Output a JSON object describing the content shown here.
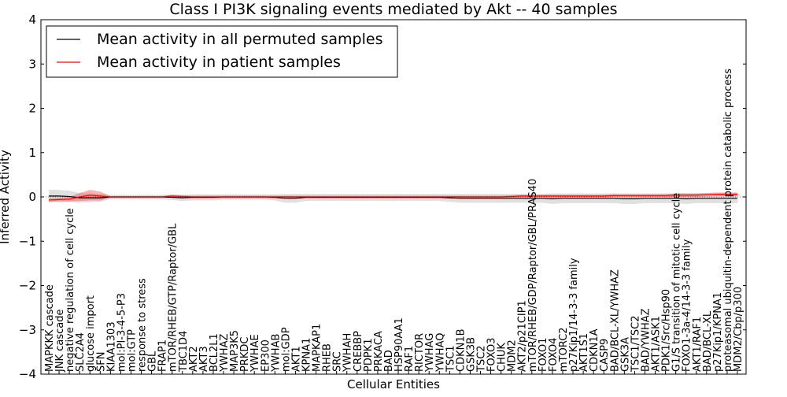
{
  "chart_data": {
    "type": "line",
    "title": "Class I PI3K signaling events mediated by Akt -- 40 samples",
    "xlabel": "Cellular Entities",
    "ylabel": "Inferred Activity",
    "ylim": [
      -4,
      4
    ],
    "yticks": [
      -4,
      -3,
      -2,
      -1,
      0,
      1,
      2,
      3,
      4
    ],
    "ytick_labels": [
      "−4",
      "−3",
      "−2",
      "−1",
      "0",
      "1",
      "2",
      "3",
      "4"
    ],
    "legend": {
      "placement": "top-left",
      "entries": [
        {
          "label": "Mean activity in all permuted samples",
          "color": "#000000"
        },
        {
          "label": "Mean activity in patient samples",
          "color": "#ff0000"
        }
      ]
    },
    "categories": [
      "MAPKKK cascade",
      "JNK cascade",
      "negative regulation of cell cycle",
      "SLC2A4",
      "glucose import",
      "SFN",
      "KIAA1303",
      "mol:PI-3-4-5-P3",
      "mol:GTP",
      "response to stress",
      "GBL",
      "FRAP1",
      "mTOR/RHEB/GTP/Raptor/GBL",
      "TBC1D4",
      "AKT2",
      "AKT3",
      "BCL2L1",
      "YWHAZ",
      "MAP3K5",
      "PRKDC",
      "YWHAE",
      "EP300",
      "YWHAB",
      "mol:GDP",
      "AKT1",
      "KPNA1",
      "MAPKAP1",
      "RHEB",
      "SRC",
      "YWHAH",
      "CREBBP",
      "PDPK1",
      "PRKACA",
      "BAD",
      "HSP90AA1",
      "RAF1",
      "RICTOR",
      "YWHAG",
      "YWHAQ",
      "TSC1",
      "CDKN1B",
      "GSK3B",
      "TSC2",
      "FOXO3",
      "CHUK",
      "MDM2",
      "AKT2/p21CIP1",
      "mTOR/RHEB/GDP/Raptor/GBL/PRAS40",
      "FOXO1",
      "FOXO4",
      "mTORC2",
      "p27Kip1/14-3-3 family",
      "AKT1S1",
      "CDKN1A",
      "CASP9",
      "BAD/BCL-XL/YWHAZ",
      "GSK3A",
      "TSC1/TSC2",
      "BAD/YWHAZ",
      "AKT1/ASK1",
      "PDK1/Src/Hsp90",
      "G1/S transition of mitotic cell cycle",
      "FOXO1-3a-4/14-3-3 family",
      "AKT1/RAF1",
      "BAD/BCL-XL",
      "p27Kip1/KPNA1",
      "proteasomal ubiquitin-dependent protein catabolic process",
      "MDM2/Cbp/p300"
    ],
    "series": [
      {
        "name": "Mean activity in all permuted samples",
        "color": "#000000",
        "values": [
          0.02,
          0.02,
          0.01,
          -0.02,
          -0.02,
          -0.02,
          0.0,
          0.0,
          0.0,
          0.0,
          0.0,
          0.0,
          -0.01,
          -0.02,
          -0.01,
          -0.01,
          -0.01,
          0.0,
          0.0,
          0.0,
          0.0,
          0.0,
          -0.01,
          -0.03,
          -0.03,
          -0.01,
          -0.01,
          -0.01,
          -0.01,
          -0.01,
          -0.01,
          -0.01,
          -0.01,
          -0.01,
          -0.01,
          -0.01,
          -0.01,
          -0.01,
          -0.01,
          -0.02,
          -0.03,
          -0.03,
          -0.03,
          -0.03,
          -0.03,
          -0.03,
          -0.03,
          -0.03,
          -0.03,
          -0.04,
          -0.03,
          -0.03,
          -0.03,
          -0.03,
          -0.03,
          -0.03,
          -0.04,
          -0.04,
          -0.03,
          -0.03,
          -0.03,
          -0.03,
          -0.04,
          -0.03,
          -0.03,
          -0.03,
          -0.03,
          -0.03
        ],
        "band": [
          0.14,
          0.14,
          0.13,
          0.11,
          0.1,
          0.09,
          0.05,
          0.05,
          0.05,
          0.05,
          0.05,
          0.05,
          0.06,
          0.07,
          0.07,
          0.07,
          0.07,
          0.06,
          0.06,
          0.06,
          0.06,
          0.06,
          0.07,
          0.1,
          0.1,
          0.08,
          0.08,
          0.08,
          0.08,
          0.08,
          0.08,
          0.08,
          0.08,
          0.08,
          0.08,
          0.08,
          0.08,
          0.08,
          0.08,
          0.09,
          0.1,
          0.1,
          0.1,
          0.1,
          0.1,
          0.1,
          0.1,
          0.1,
          0.1,
          0.12,
          0.11,
          0.11,
          0.11,
          0.11,
          0.11,
          0.11,
          0.12,
          0.12,
          0.11,
          0.11,
          0.11,
          0.11,
          0.12,
          0.11,
          0.11,
          0.11,
          0.11,
          0.11
        ]
      },
      {
        "name": "Mean activity in patient samples",
        "color": "#ff0000",
        "values": [
          -0.07,
          -0.06,
          -0.05,
          0.0,
          0.04,
          0.02,
          0.0,
          0.0,
          0.0,
          0.0,
          0.0,
          0.0,
          0.02,
          0.01,
          0.0,
          0.0,
          0.0,
          0.0,
          0.0,
          0.0,
          0.0,
          0.0,
          0.0,
          0.0,
          0.0,
          0.0,
          0.0,
          0.0,
          0.0,
          0.0,
          0.0,
          0.0,
          0.0,
          0.0,
          0.0,
          0.0,
          0.0,
          0.0,
          0.0,
          0.0,
          0.0,
          0.0,
          0.0,
          0.0,
          0.0,
          0.01,
          0.02,
          0.02,
          0.02,
          0.02,
          0.02,
          0.02,
          0.02,
          0.02,
          0.02,
          0.03,
          0.03,
          0.03,
          0.03,
          0.03,
          0.03,
          0.04,
          0.04,
          0.04,
          0.05,
          0.06,
          0.06,
          0.06
        ],
        "band": [
          0.04,
          0.04,
          0.05,
          0.09,
          0.12,
          0.1,
          0.02,
          0.02,
          0.02,
          0.02,
          0.02,
          0.02,
          0.03,
          0.03,
          0.03,
          0.03,
          0.03,
          0.03,
          0.03,
          0.03,
          0.03,
          0.03,
          0.03,
          0.03,
          0.03,
          0.03,
          0.03,
          0.03,
          0.03,
          0.03,
          0.03,
          0.03,
          0.03,
          0.03,
          0.03,
          0.03,
          0.03,
          0.03,
          0.03,
          0.03,
          0.03,
          0.03,
          0.03,
          0.03,
          0.03,
          0.03,
          0.03,
          0.03,
          0.03,
          0.03,
          0.03,
          0.03,
          0.03,
          0.03,
          0.03,
          0.03,
          0.03,
          0.03,
          0.03,
          0.03,
          0.03,
          0.04,
          0.04,
          0.04,
          0.04,
          0.04,
          0.04,
          0.04
        ]
      }
    ]
  }
}
